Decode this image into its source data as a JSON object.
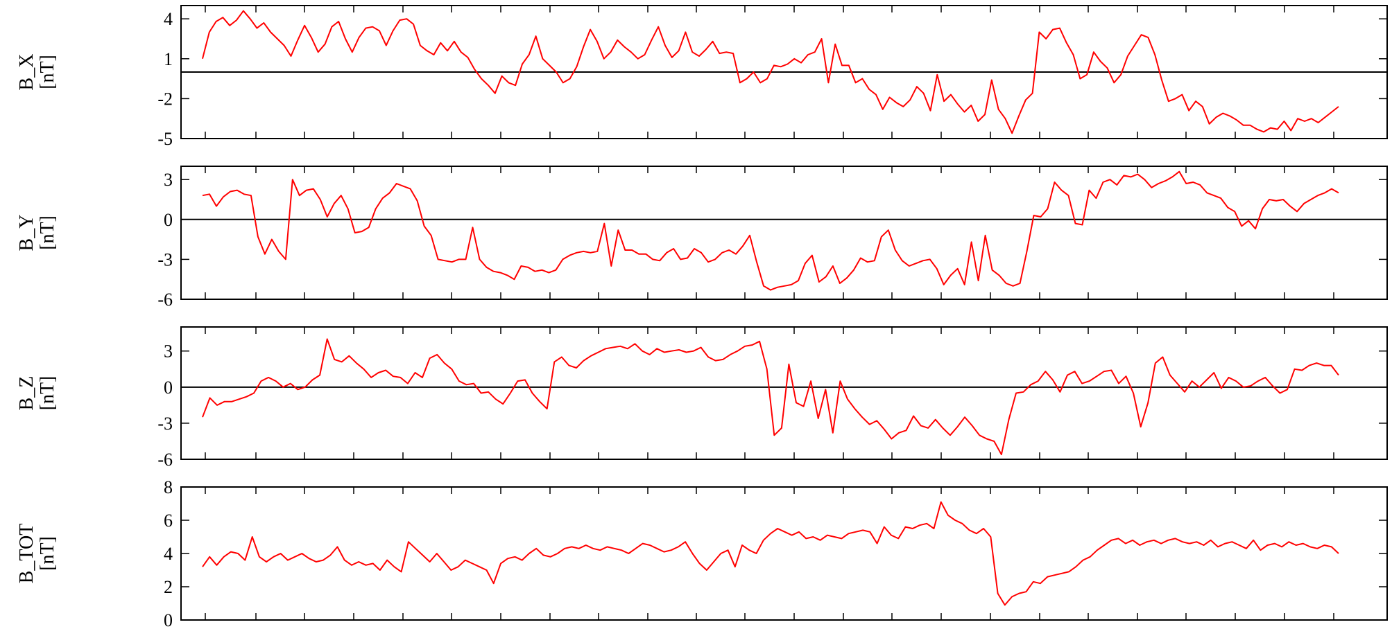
{
  "chart_data": [
    {
      "type": "line",
      "ylabel": "B_X",
      "unit": "[nT]",
      "yticks": [
        "4",
        "1",
        "-2",
        "-5"
      ],
      "ytick_values": [
        4,
        1,
        -2,
        -5
      ],
      "ylim": [
        -5,
        5
      ],
      "zero_line": 0,
      "grid": false,
      "color": "#ff0000",
      "values": [
        1.0,
        3.0,
        3.8,
        4.1,
        3.5,
        3.9,
        4.6,
        4.0,
        3.3,
        3.7,
        3.0,
        2.5,
        2.0,
        1.2,
        2.4,
        3.5,
        2.6,
        1.5,
        2.1,
        3.4,
        3.8,
        2.5,
        1.5,
        2.6,
        3.3,
        3.4,
        3.1,
        2.0,
        3.1,
        3.9,
        4.0,
        3.6,
        2.0,
        1.6,
        1.3,
        2.2,
        1.6,
        2.3,
        1.5,
        1.1,
        0.2,
        -0.5,
        -1.0,
        -1.6,
        -0.3,
        -0.8,
        -1.0,
        0.6,
        1.3,
        2.7,
        1.0,
        0.5,
        0.0,
        -0.8,
        -0.5,
        0.4,
        1.9,
        3.2,
        2.3,
        1.0,
        1.5,
        2.4,
        1.9,
        1.5,
        1.0,
        1.3,
        2.4,
        3.4,
        2.0,
        1.1,
        1.6,
        3.0,
        1.5,
        1.2,
        1.7,
        2.3,
        1.4,
        1.5,
        1.4,
        -0.8,
        -0.5,
        0.0,
        -0.8,
        -0.5,
        0.5,
        0.4,
        0.6,
        1.0,
        0.7,
        1.3,
        1.5,
        2.5,
        -0.8,
        2.1,
        0.5,
        0.5,
        -0.8,
        -0.5,
        -1.3,
        -1.7,
        -2.8,
        -1.9,
        -2.3,
        -2.6,
        -2.1,
        -1.1,
        -1.6,
        -2.9,
        -0.2,
        -2.2,
        -1.7,
        -2.4,
        -3.0,
        -2.5,
        -3.7,
        -3.2,
        -0.6,
        -2.8,
        -3.5,
        -4.6,
        -3.3,
        -2.1,
        -1.6,
        3.0,
        2.5,
        3.2,
        3.3,
        2.2,
        1.3,
        -0.5,
        -0.2,
        1.5,
        0.8,
        0.3,
        -0.8,
        -0.2,
        1.2,
        2.0,
        2.8,
        2.6,
        1.3,
        -0.6,
        -2.2,
        -2.0,
        -1.7,
        -2.9,
        -2.2,
        -2.6,
        -3.9,
        -3.4,
        -3.1,
        -3.3,
        -3.6,
        -4.0,
        -4.0,
        -4.3,
        -4.5,
        -4.2,
        -4.3,
        -3.7,
        -4.4,
        -3.5,
        -3.7,
        -3.5,
        -3.8,
        -3.4,
        -3.0,
        -2.6
      ]
    },
    {
      "type": "line",
      "ylabel": "B_Y",
      "unit": "[nT]",
      "yticks": [
        "3",
        "0",
        "-3",
        "-6"
      ],
      "ytick_values": [
        3,
        0,
        -3,
        -6
      ],
      "ylim": [
        -6,
        4
      ],
      "zero_line": 0,
      "grid": false,
      "color": "#ff0000",
      "values": [
        1.8,
        1.9,
        1.0,
        1.7,
        2.1,
        2.2,
        1.9,
        1.8,
        -1.3,
        -2.6,
        -1.5,
        -2.4,
        -3.0,
        3.0,
        1.8,
        2.2,
        2.3,
        1.5,
        0.2,
        1.2,
        1.8,
        0.8,
        -1.0,
        -0.9,
        -0.6,
        0.8,
        1.6,
        2.0,
        2.7,
        2.5,
        2.3,
        1.4,
        -0.5,
        -1.2,
        -3.0,
        -3.1,
        -3.2,
        -3.0,
        -3.0,
        -0.6,
        -3.0,
        -3.6,
        -3.9,
        -4.0,
        -4.2,
        -4.5,
        -3.5,
        -3.6,
        -3.9,
        -3.8,
        -4.0,
        -3.8,
        -3.0,
        -2.7,
        -2.5,
        -2.4,
        -2.5,
        -2.4,
        -0.3,
        -3.5,
        -0.8,
        -2.3,
        -2.3,
        -2.6,
        -2.6,
        -3.0,
        -3.1,
        -2.5,
        -2.2,
        -3.0,
        -2.9,
        -2.2,
        -2.5,
        -3.2,
        -3.0,
        -2.5,
        -2.3,
        -2.6,
        -2.0,
        -1.2,
        -3.2,
        -5.0,
        -5.3,
        -5.1,
        -5.0,
        -4.9,
        -4.6,
        -3.3,
        -2.7,
        -4.7,
        -4.3,
        -3.5,
        -4.8,
        -4.4,
        -3.8,
        -2.9,
        -3.2,
        -3.1,
        -1.3,
        -0.8,
        -2.3,
        -3.1,
        -3.5,
        -3.3,
        -3.1,
        -3.0,
        -3.7,
        -4.9,
        -4.2,
        -3.7,
        -4.9,
        -1.7,
        -4.6,
        -1.2,
        -3.8,
        -4.2,
        -4.8,
        -5.0,
        -4.8,
        -2.4,
        0.3,
        0.2,
        0.8,
        2.8,
        2.2,
        1.8,
        -0.3,
        -0.4,
        2.2,
        1.6,
        2.8,
        3.0,
        2.6,
        3.3,
        3.2,
        3.4,
        3.0,
        2.4,
        2.7,
        2.9,
        3.2,
        3.6,
        2.7,
        2.8,
        2.6,
        2.0,
        1.8,
        1.6,
        0.9,
        0.6,
        -0.5,
        -0.1,
        -0.7,
        0.8,
        1.5,
        1.4,
        1.5,
        1.0,
        0.6,
        1.2,
        1.5,
        1.8,
        2.0,
        2.3,
        2.0
      ]
    },
    {
      "type": "line",
      "ylabel": "B_Z",
      "unit": "[nT]",
      "yticks": [
        "3",
        "0",
        "-3",
        "-6"
      ],
      "ytick_values": [
        3,
        0,
        -3,
        -6
      ],
      "ylim": [
        -6,
        5
      ],
      "zero_line": 0,
      "grid": false,
      "color": "#ff0000",
      "values": [
        -2.5,
        -0.9,
        -1.5,
        -1.2,
        -1.2,
        -1.0,
        -0.8,
        -0.5,
        0.5,
        0.8,
        0.5,
        0.0,
        0.3,
        -0.2,
        0.0,
        0.6,
        1.0,
        4.0,
        2.3,
        2.1,
        2.6,
        2.0,
        1.5,
        0.8,
        1.2,
        1.4,
        0.9,
        0.8,
        0.3,
        1.2,
        0.8,
        2.4,
        2.7,
        2.0,
        1.5,
        0.5,
        0.2,
        0.3,
        -0.5,
        -0.4,
        -1.0,
        -1.4,
        -0.5,
        0.5,
        0.6,
        -0.5,
        -1.2,
        -1.8,
        2.1,
        2.5,
        1.8,
        1.6,
        2.2,
        2.6,
        2.9,
        3.2,
        3.3,
        3.4,
        3.2,
        3.6,
        3.0,
        2.7,
        3.2,
        2.9,
        3.0,
        3.1,
        2.9,
        3.0,
        3.3,
        2.5,
        2.2,
        2.3,
        2.7,
        3.0,
        3.4,
        3.5,
        3.8,
        1.5,
        -4.0,
        -3.4,
        1.9,
        -1.3,
        -1.6,
        0.5,
        -2.6,
        -0.2,
        -3.8,
        0.5,
        -1.0,
        -1.8,
        -2.5,
        -3.1,
        -2.8,
        -3.5,
        -4.3,
        -3.8,
        -3.6,
        -2.4,
        -3.2,
        -3.4,
        -2.7,
        -3.4,
        -4.0,
        -3.3,
        -2.5,
        -3.2,
        -4.0,
        -4.3,
        -4.5,
        -5.6,
        -2.7,
        -0.5,
        -0.4,
        0.2,
        0.5,
        1.3,
        0.6,
        -0.4,
        1.0,
        1.3,
        0.3,
        0.5,
        0.9,
        1.3,
        1.4,
        0.3,
        0.9,
        -0.5,
        -3.3,
        -1.3,
        2.0,
        2.5,
        1.0,
        0.3,
        -0.4,
        0.5,
        0.0,
        0.6,
        1.2,
        -0.1,
        0.8,
        0.5,
        0.0,
        0.1,
        0.5,
        0.8,
        0.1,
        -0.5,
        -0.2,
        1.5,
        1.4,
        1.8,
        2.0,
        1.8,
        1.8,
        1.0
      ]
    },
    {
      "type": "line",
      "ylabel": "B_TOT",
      "unit": "[nT]",
      "yticks": [
        "8",
        "6",
        "4",
        "2",
        "0"
      ],
      "ytick_values": [
        8,
        6,
        4,
        2,
        0
      ],
      "ylim": [
        0,
        8
      ],
      "grid": false,
      "color": "#ff0000",
      "values": [
        3.2,
        3.8,
        3.3,
        3.8,
        4.1,
        4.0,
        3.6,
        5.0,
        3.8,
        3.5,
        3.8,
        4.0,
        3.6,
        3.8,
        4.0,
        3.7,
        3.5,
        3.6,
        3.9,
        4.4,
        3.6,
        3.3,
        3.5,
        3.3,
        3.4,
        3.0,
        3.6,
        3.2,
        2.9,
        4.7,
        4.3,
        3.9,
        3.5,
        4.0,
        3.5,
        3.0,
        3.2,
        3.6,
        3.4,
        3.2,
        3.0,
        2.2,
        3.4,
        3.7,
        3.8,
        3.6,
        4.0,
        4.3,
        3.9,
        3.8,
        4.0,
        4.3,
        4.4,
        4.3,
        4.5,
        4.3,
        4.2,
        4.4,
        4.3,
        4.2,
        4.0,
        4.3,
        4.6,
        4.5,
        4.3,
        4.1,
        4.2,
        4.4,
        4.7,
        4.0,
        3.4,
        3.0,
        3.5,
        4.0,
        4.2,
        3.2,
        4.5,
        4.2,
        4.0,
        4.8,
        5.2,
        5.5,
        5.3,
        5.1,
        5.3,
        4.9,
        5.0,
        4.8,
        5.1,
        5.0,
        4.9,
        5.2,
        5.3,
        5.4,
        5.3,
        4.6,
        5.6,
        5.1,
        4.9,
        5.6,
        5.5,
        5.7,
        5.8,
        5.5,
        7.1,
        6.3,
        6.0,
        5.8,
        5.4,
        5.2,
        5.5,
        5.0,
        1.6,
        0.9,
        1.4,
        1.6,
        1.7,
        2.3,
        2.2,
        2.6,
        2.7,
        2.8,
        2.9,
        3.2,
        3.6,
        3.8,
        4.2,
        4.5,
        4.8,
        4.9,
        4.6,
        4.8,
        4.5,
        4.7,
        4.8,
        4.6,
        4.8,
        4.9,
        4.7,
        4.6,
        4.7,
        4.5,
        4.8,
        4.4,
        4.6,
        4.7,
        4.5,
        4.3,
        4.8,
        4.2,
        4.5,
        4.6,
        4.4,
        4.7,
        4.5,
        4.6,
        4.4,
        4.3,
        4.5,
        4.4,
        4.0
      ]
    }
  ]
}
